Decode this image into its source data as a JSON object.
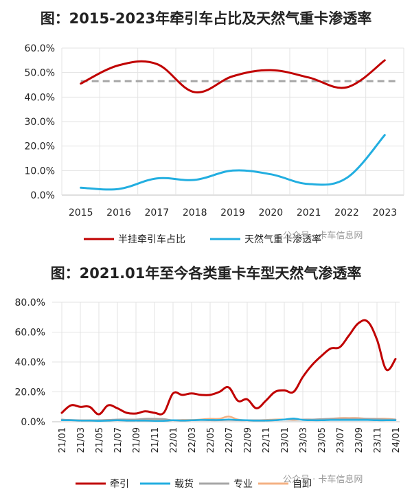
{
  "chart_data": [
    {
      "type": "line",
      "title": "图：2015-2023年牵引车占比及天然气重卡渗透率",
      "x": [
        "2015",
        "2016",
        "2017",
        "2018",
        "2019",
        "2020",
        "2021",
        "2022",
        "2023"
      ],
      "ylim": [
        0,
        0.6
      ],
      "yticks": [
        "0.0%",
        "10.0%",
        "20.0%",
        "30.0%",
        "40.0%",
        "50.0%",
        "60.0%"
      ],
      "reference_line": {
        "value": 0.465,
        "style": "dashed",
        "color": "#a6a6a6"
      },
      "legend_position": "bottom",
      "series": [
        {
          "name": "半挂牵引车占比",
          "color": "#c00000",
          "values": [
            0.455,
            0.53,
            0.535,
            0.42,
            0.485,
            0.51,
            0.48,
            0.44,
            0.55
          ]
        },
        {
          "name": "天然气重卡渗透率",
          "color": "#22aee0",
          "values": [
            0.03,
            0.025,
            0.068,
            0.062,
            0.1,
            0.085,
            0.045,
            0.07,
            0.245
          ]
        }
      ]
    },
    {
      "type": "line",
      "title": "图：2021.01年至今各类重卡车型天然气渗透率",
      "x": [
        "21/01",
        "21/02",
        "21/03",
        "21/04",
        "21/05",
        "21/06",
        "21/07",
        "21/08",
        "21/09",
        "21/10",
        "21/11",
        "21/12",
        "22/01",
        "22/02",
        "22/03",
        "22/04",
        "22/05",
        "22/06",
        "22/07",
        "22/08",
        "22/09",
        "22/10",
        "22/11",
        "22/12",
        "23/01",
        "23/02",
        "23/03",
        "23/04",
        "23/05",
        "23/06",
        "23/07",
        "23/08",
        "23/09",
        "23/10",
        "23/11",
        "23/12",
        "24/01"
      ],
      "xticks": [
        "21/01",
        "21/03",
        "21/05",
        "21/07",
        "21/09",
        "21/11",
        "22/01",
        "22/03",
        "22/05",
        "22/07",
        "22/09",
        "22/11",
        "23/01",
        "23/03",
        "23/05",
        "23/07",
        "23/09",
        "23/11",
        "24/01"
      ],
      "ylim": [
        0,
        0.8
      ],
      "yticks": [
        "0.0%",
        "20.0%",
        "40.0%",
        "60.0%",
        "80.0%"
      ],
      "legend_position": "bottom",
      "series": [
        {
          "name": "牵引",
          "color": "#c00000",
          "values": [
            0.06,
            0.11,
            0.1,
            0.1,
            0.05,
            0.11,
            0.09,
            0.06,
            0.055,
            0.07,
            0.06,
            0.06,
            0.19,
            0.18,
            0.19,
            0.18,
            0.18,
            0.2,
            0.23,
            0.14,
            0.15,
            0.09,
            0.14,
            0.2,
            0.21,
            0.2,
            0.3,
            0.38,
            0.44,
            0.49,
            0.5,
            0.58,
            0.66,
            0.67,
            0.55,
            0.35,
            0.42
          ]
        },
        {
          "name": "载货",
          "color": "#22aee0",
          "values": [
            0.01,
            0.01,
            0.008,
            0.008,
            0.006,
            0.008,
            0.01,
            0.008,
            0.008,
            0.008,
            0.006,
            0.006,
            0.01,
            0.008,
            0.01,
            0.012,
            0.012,
            0.012,
            0.015,
            0.012,
            0.01,
            0.008,
            0.008,
            0.01,
            0.015,
            0.022,
            0.012,
            0.01,
            0.01,
            0.012,
            0.012,
            0.012,
            0.012,
            0.012,
            0.01,
            0.01,
            0.01
          ]
        },
        {
          "name": "专业",
          "color": "#a6a6a6",
          "values": [
            0.015,
            0.012,
            0.01,
            0.01,
            0.01,
            0.012,
            0.015,
            0.015,
            0.015,
            0.02,
            0.02,
            0.018,
            0.01,
            0.01,
            0.01,
            0.012,
            0.01,
            0.01,
            0.012,
            0.01,
            0.01,
            0.01,
            0.01,
            0.01,
            0.015,
            0.015,
            0.015,
            0.015,
            0.018,
            0.02,
            0.02,
            0.02,
            0.02,
            0.02,
            0.018,
            0.015,
            0.015
          ]
        },
        {
          "name": "自卸",
          "color": "#f4b183",
          "values": [
            0.01,
            0.01,
            0.01,
            0.01,
            0.01,
            0.012,
            0.012,
            0.01,
            0.012,
            0.012,
            0.01,
            0.01,
            0.01,
            0.012,
            0.012,
            0.015,
            0.02,
            0.02,
            0.035,
            0.015,
            0.01,
            0.01,
            0.012,
            0.015,
            0.015,
            0.012,
            0.015,
            0.015,
            0.015,
            0.02,
            0.025,
            0.025,
            0.025,
            0.02,
            0.02,
            0.02,
            0.015
          ]
        }
      ]
    }
  ],
  "watermarks": {
    "top": "公众号 · 卡车信息网",
    "bottom": "公众号 · 卡车信息网"
  }
}
